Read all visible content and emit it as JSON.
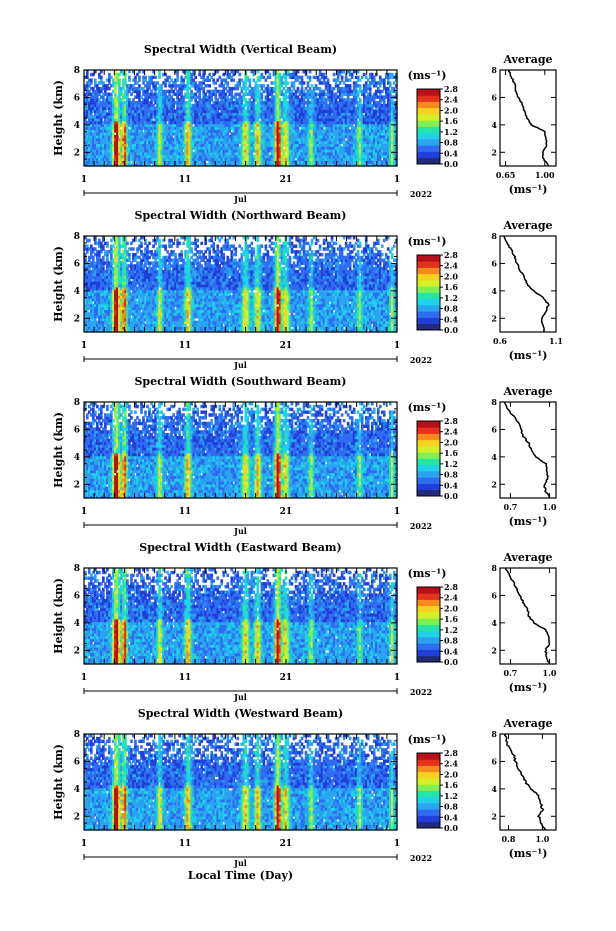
{
  "figure": {
    "xlabel": "Local Time (Day)",
    "month_label": "Jul",
    "year_label": "2022",
    "x_ticks": [
      "1",
      "11",
      "21",
      "1"
    ],
    "ylabel": "Height (km)",
    "y_ticks": [
      "2",
      "4",
      "6",
      "8"
    ],
    "colorbar_unit": "(ms⁻¹)",
    "avg_title": "Average",
    "avg_xlabel": "(ms⁻¹)"
  },
  "colors": {
    "colormap": [
      "#232a7a",
      "#1f3fd8",
      "#2f6cf2",
      "#2aa3f0",
      "#1fd2e8",
      "#26e3a8",
      "#7fef52",
      "#d4ef2a",
      "#f5d21f",
      "#f78a1c",
      "#e6321c",
      "#b8101a"
    ],
    "missing": "#ffffff",
    "line": "#000000"
  },
  "chart_data": [
    {
      "type": "heatmap",
      "title": "Spectral Width (Vertical Beam)",
      "x_range_days": [
        1,
        32
      ],
      "ylim": [
        1,
        8
      ],
      "color_range": [
        0,
        2.8
      ],
      "colorbar_ticks": [
        "2.8",
        "2.4",
        "2.0",
        "1.6",
        "1.2",
        "0.8",
        "0.4",
        "0.0"
      ],
      "average_profile": {
        "title": "Average",
        "xticks": [
          "0.65",
          "1.00"
        ],
        "xlim": [
          0.6,
          1.1
        ],
        "heights": [
          1.0,
          1.5,
          2.0,
          2.5,
          3.0,
          3.5,
          4.0,
          4.5,
          5.0,
          5.5,
          6.0,
          6.5,
          7.0,
          7.5,
          8.0
        ],
        "values": [
          1.04,
          0.99,
          0.98,
          1.02,
          1.01,
          1.0,
          0.88,
          0.84,
          0.82,
          0.8,
          0.76,
          0.74,
          0.73,
          0.7,
          0.68
        ]
      }
    },
    {
      "type": "heatmap",
      "title": "Spectral Width (Northward Beam)",
      "x_range_days": [
        1,
        32
      ],
      "ylim": [
        1,
        8
      ],
      "color_range": [
        0,
        2.8
      ],
      "colorbar_ticks": [
        "2.8",
        "2.4",
        "2.0",
        "1.6",
        "1.2",
        "0.8",
        "0.4",
        "0.0"
      ],
      "average_profile": {
        "title": "Average",
        "xticks": [
          "0.6",
          "1.1"
        ],
        "xlim": [
          0.6,
          1.1
        ],
        "heights": [
          1.0,
          1.5,
          2.0,
          2.5,
          3.0,
          3.5,
          4.0,
          4.5,
          5.0,
          5.5,
          6.0,
          6.5,
          7.0,
          7.5,
          8.0
        ],
        "values": [
          1.0,
          0.98,
          0.97,
          1.01,
          1.03,
          0.99,
          0.9,
          0.84,
          0.82,
          0.78,
          0.75,
          0.73,
          0.7,
          0.66,
          0.63
        ]
      }
    },
    {
      "type": "heatmap",
      "title": "Spectral Width (Southward Beam)",
      "x_range_days": [
        1,
        32
      ],
      "ylim": [
        1,
        8
      ],
      "color_range": [
        0,
        2.8
      ],
      "colorbar_ticks": [
        "2.8",
        "2.4",
        "2.0",
        "1.6",
        "1.2",
        "0.8",
        "0.4",
        "0.0"
      ],
      "average_profile": {
        "title": "Average",
        "xticks": [
          "0.7",
          "1.0"
        ],
        "xlim": [
          0.62,
          1.05
        ],
        "heights": [
          1.0,
          1.5,
          2.0,
          2.5,
          3.0,
          3.5,
          4.0,
          4.5,
          5.0,
          5.5,
          6.0,
          6.5,
          7.0,
          7.5,
          8.0
        ],
        "values": [
          1.0,
          0.97,
          0.96,
          0.99,
          0.98,
          0.97,
          0.9,
          0.86,
          0.84,
          0.8,
          0.78,
          0.76,
          0.72,
          0.68,
          0.65
        ]
      }
    },
    {
      "type": "heatmap",
      "title": "Spectral Width (Eastward Beam)",
      "x_range_days": [
        1,
        32
      ],
      "ylim": [
        1,
        8
      ],
      "color_range": [
        0,
        2.8
      ],
      "colorbar_ticks": [
        "2.8",
        "2.4",
        "2.0",
        "1.6",
        "1.2",
        "0.8",
        "0.4",
        "0.0"
      ],
      "average_profile": {
        "title": "Average",
        "xticks": [
          "0.7",
          "1.0"
        ],
        "xlim": [
          0.62,
          1.05
        ],
        "heights": [
          1.0,
          1.5,
          2.0,
          2.5,
          3.0,
          3.5,
          4.0,
          4.5,
          5.0,
          5.5,
          6.0,
          6.5,
          7.0,
          7.5,
          8.0
        ],
        "values": [
          1.0,
          0.98,
          0.97,
          1.0,
          0.99,
          0.97,
          0.88,
          0.84,
          0.83,
          0.8,
          0.77,
          0.75,
          0.72,
          0.69,
          0.66
        ]
      }
    },
    {
      "type": "heatmap",
      "title": "Spectral Width (Westward Beam)",
      "x_range_days": [
        1,
        32
      ],
      "ylim": [
        1,
        8
      ],
      "color_range": [
        0,
        2.8
      ],
      "colorbar_ticks": [
        "2.8",
        "2.4",
        "2.0",
        "1.6",
        "1.2",
        "0.8",
        "0.4",
        "0.0"
      ],
      "average_profile": {
        "title": "Average",
        "xticks": [
          "0.8",
          "1.0"
        ],
        "xlim": [
          0.75,
          1.08
        ],
        "heights": [
          1.0,
          1.5,
          2.0,
          2.5,
          3.0,
          3.5,
          4.0,
          4.5,
          5.0,
          5.5,
          6.0,
          6.5,
          7.0,
          7.5,
          8.0
        ],
        "values": [
          1.02,
          0.99,
          0.98,
          1.0,
          0.99,
          0.98,
          0.93,
          0.9,
          0.88,
          0.86,
          0.84,
          0.83,
          0.8,
          0.79,
          0.78
        ]
      }
    }
  ]
}
